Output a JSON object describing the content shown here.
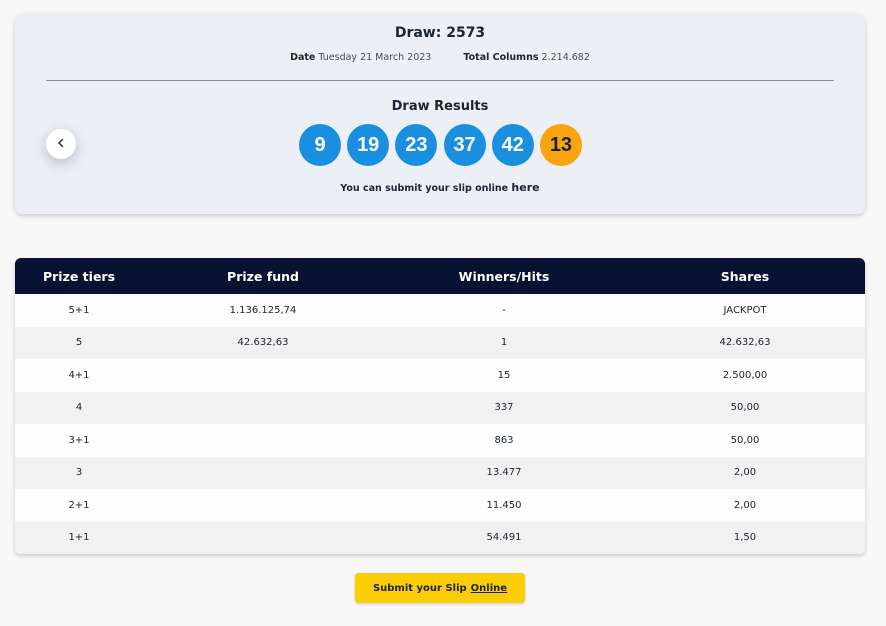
{
  "draw": {
    "title": "Draw: 2573",
    "date_label": "Date",
    "date_value": "Tuesday 21 March 2023",
    "columns_label": "Total Columns",
    "columns_value": "2.214.682"
  },
  "results": {
    "title": "Draw Results",
    "numbers": [
      "9",
      "19",
      "23",
      "37",
      "42"
    ],
    "bonus": "13",
    "colors": {
      "main": "#1a8fe0",
      "bonus": "#f8a40f"
    }
  },
  "nav": {
    "prev_icon": "chevron-left-icon"
  },
  "submit_line": {
    "text": "You can submit your slip online",
    "link": "here"
  },
  "prize_table": {
    "headers": [
      "Prize tiers",
      "Prize fund",
      "Winners/Hits",
      "Shares"
    ],
    "rows": [
      [
        "5+1",
        "1.136.125,74",
        "-",
        "JACKPOT"
      ],
      [
        "5",
        "42.632,63",
        "1",
        "42.632,63"
      ],
      [
        "4+1",
        "",
        "15",
        "2.500,00"
      ],
      [
        "4",
        "",
        "337",
        "50,00"
      ],
      [
        "3+1",
        "",
        "863",
        "50,00"
      ],
      [
        "3",
        "",
        "13.477",
        "2,00"
      ],
      [
        "2+1",
        "",
        "11.450",
        "2,00"
      ],
      [
        "1+1",
        "",
        "54.491",
        "1,50"
      ]
    ]
  },
  "bottom_button": {
    "text": "Submit your Slip",
    "link": "Online",
    "color": "#fbcd06"
  }
}
